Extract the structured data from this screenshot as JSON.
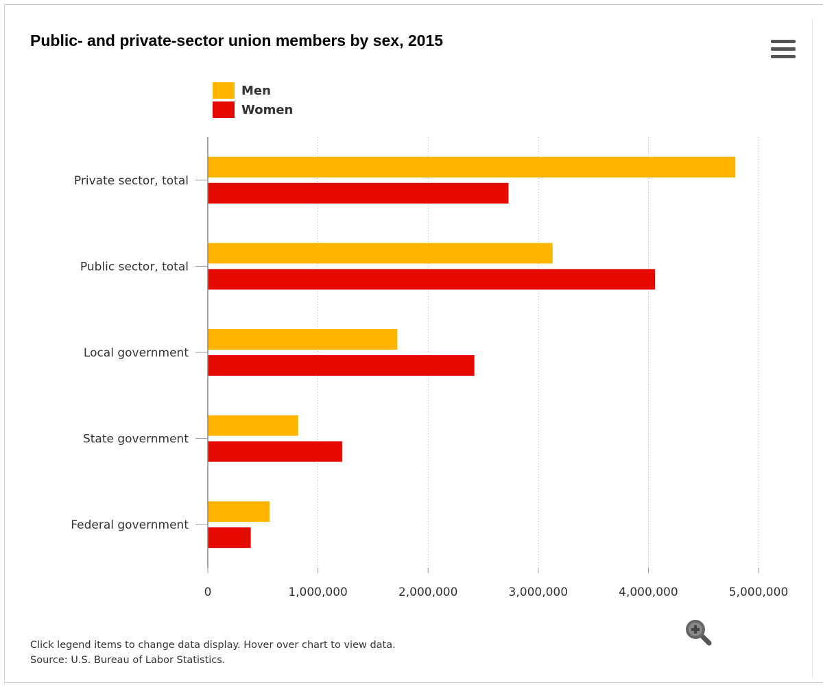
{
  "chart_data": {
    "type": "bar",
    "orientation": "horizontal",
    "title": "Public- and private-sector union members by sex, 2015",
    "categories": [
      "Private sector, total",
      "Public sector, total",
      "Local government",
      "State government",
      "Federal government"
    ],
    "series": [
      {
        "name": "Men",
        "color": "#FFB400",
        "values": [
          4790000,
          3130000,
          1720000,
          820000,
          560000
        ]
      },
      {
        "name": "Women",
        "color": "#E40A00",
        "values": [
          2730000,
          4060000,
          2420000,
          1220000,
          390000
        ]
      }
    ],
    "xlim": [
      0,
      5000000
    ],
    "xticks": [
      0,
      1000000,
      2000000,
      3000000,
      4000000,
      5000000
    ],
    "xtick_labels": [
      "0",
      "1,000,000",
      "2,000,000",
      "3,000,000",
      "4,000,000",
      "5,000,000"
    ],
    "xlabel": "",
    "ylabel": "",
    "grid": "vertical-dotted",
    "legend_position": "top-left"
  },
  "footer": {
    "line1": "Click legend items to change data display. Hover over chart to view data.",
    "line2": "Source: U.S. Bureau of Labor Statistics."
  },
  "icons": {
    "menu": "hamburger-menu-icon",
    "zoom": "zoom-in-icon"
  }
}
